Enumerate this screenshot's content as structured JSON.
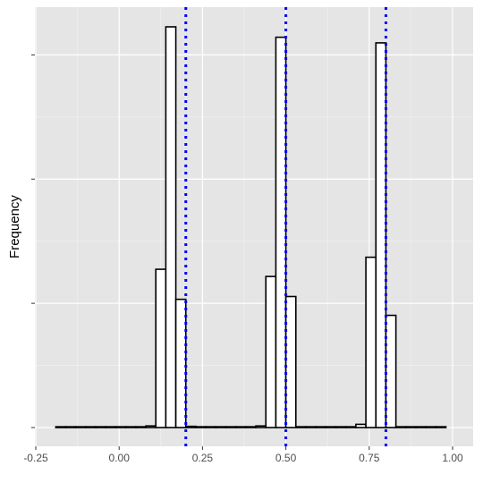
{
  "chart_data": {
    "type": "bar",
    "subtype": "histogram",
    "title": "",
    "xlabel": "",
    "ylabel": "Frequency",
    "xlim": [
      -0.25,
      1.0
    ],
    "ylim": [
      0,
      1.0
    ],
    "x_tick_labels": [
      "-0.25",
      "0.00",
      "0.25",
      "0.50",
      "0.75",
      "1.00"
    ],
    "x_tick_values": [
      -0.25,
      0.0,
      0.25,
      0.5,
      0.75,
      1.0
    ],
    "y_tick_values": [
      0,
      0.31,
      0.62,
      0.93
    ],
    "y_tick_labels_visible": false,
    "grid": true,
    "background": "#e5e5e5",
    "bar_fill": "#ffffff",
    "bar_edge": "#000000",
    "bin_width": 0.03,
    "bins": [
      {
        "x0": -0.19,
        "count": 0.002
      },
      {
        "x0": -0.16,
        "count": 0.002
      },
      {
        "x0": -0.13,
        "count": 0.002
      },
      {
        "x0": -0.1,
        "count": 0.002
      },
      {
        "x0": -0.07,
        "count": 0.002
      },
      {
        "x0": -0.04,
        "count": 0.002
      },
      {
        "x0": -0.01,
        "count": 0.002
      },
      {
        "x0": 0.02,
        "count": 0.002
      },
      {
        "x0": 0.05,
        "count": 0.002
      },
      {
        "x0": 0.08,
        "count": 0.004
      },
      {
        "x0": 0.11,
        "count": 0.395
      },
      {
        "x0": 0.14,
        "count": 1.0
      },
      {
        "x0": 0.17,
        "count": 0.32
      },
      {
        "x0": 0.2,
        "count": 0.003
      },
      {
        "x0": 0.23,
        "count": 0.002
      },
      {
        "x0": 0.26,
        "count": 0.002
      },
      {
        "x0": 0.29,
        "count": 0.002
      },
      {
        "x0": 0.32,
        "count": 0.002
      },
      {
        "x0": 0.35,
        "count": 0.002
      },
      {
        "x0": 0.38,
        "count": 0.002
      },
      {
        "x0": 0.41,
        "count": 0.004
      },
      {
        "x0": 0.44,
        "count": 0.377
      },
      {
        "x0": 0.47,
        "count": 0.974
      },
      {
        "x0": 0.5,
        "count": 0.327
      },
      {
        "x0": 0.53,
        "count": 0.002
      },
      {
        "x0": 0.56,
        "count": 0.002
      },
      {
        "x0": 0.59,
        "count": 0.002
      },
      {
        "x0": 0.62,
        "count": 0.002
      },
      {
        "x0": 0.65,
        "count": 0.002
      },
      {
        "x0": 0.68,
        "count": 0.002
      },
      {
        "x0": 0.71,
        "count": 0.008
      },
      {
        "x0": 0.74,
        "count": 0.425
      },
      {
        "x0": 0.77,
        "count": 0.96
      },
      {
        "x0": 0.8,
        "count": 0.28
      },
      {
        "x0": 0.83,
        "count": 0.002
      },
      {
        "x0": 0.86,
        "count": 0.002
      },
      {
        "x0": 0.89,
        "count": 0.002
      },
      {
        "x0": 0.92,
        "count": 0.002
      },
      {
        "x0": 0.95,
        "count": 0.002
      }
    ],
    "reference_lines": [
      {
        "x": 0.2,
        "color": "#0000ff",
        "style": "dotted"
      },
      {
        "x": 0.5,
        "color": "#0000ff",
        "style": "dotted"
      },
      {
        "x": 0.8,
        "color": "#0000ff",
        "style": "dotted"
      }
    ]
  }
}
